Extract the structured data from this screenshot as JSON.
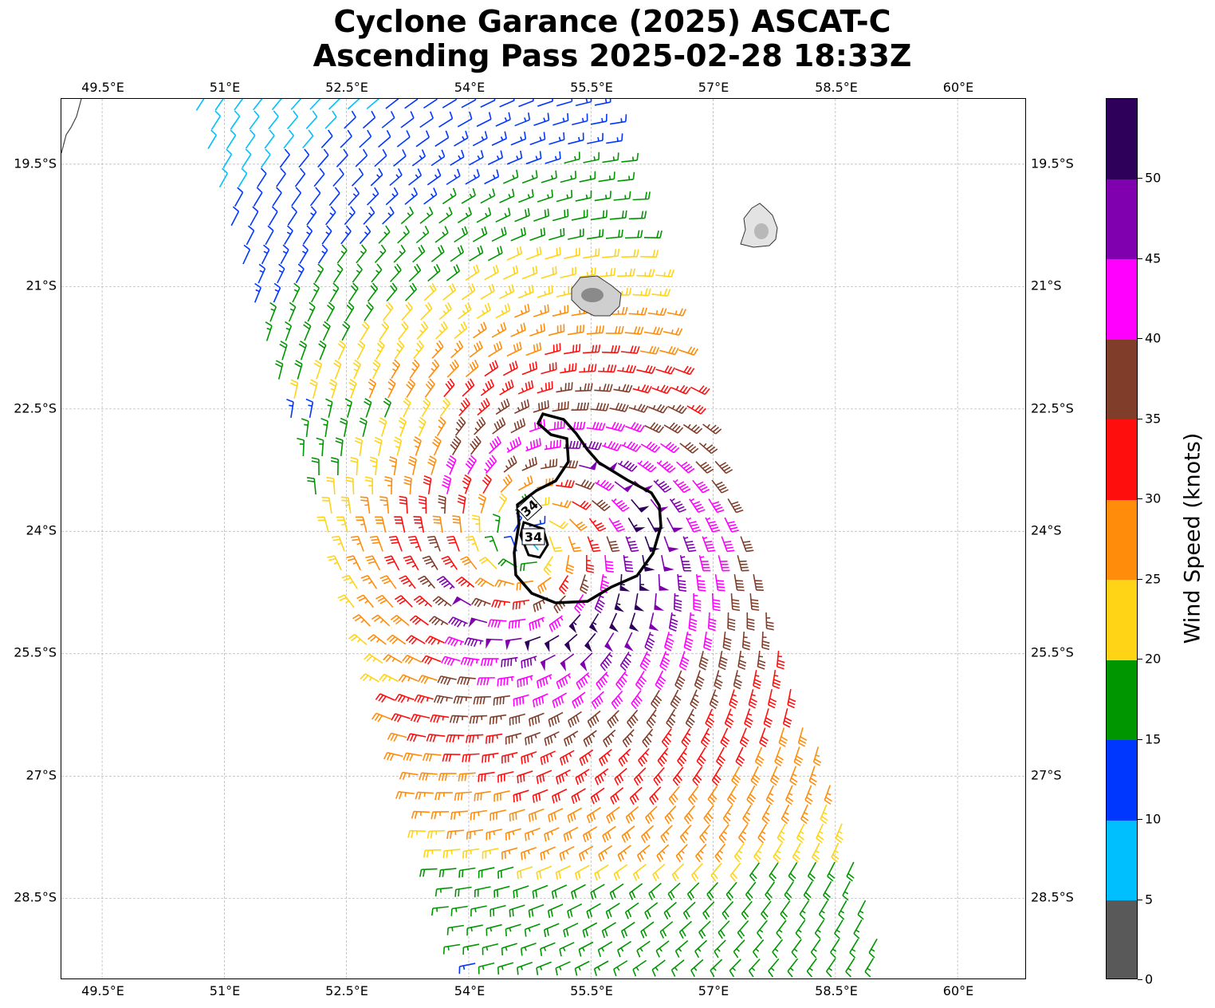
{
  "title": {
    "line1": "Cyclone Garance (2025) ASCAT-C",
    "line2": "Ascending Pass 2025-02-28 18:33Z"
  },
  "lon_labels": [
    "49.5°E",
    "51°E",
    "52.5°E",
    "54°E",
    "55.5°E",
    "57°E",
    "58.5°E",
    "60°E"
  ],
  "lat_labels": [
    "19.5°S",
    "21°S",
    "22.5°S",
    "24°S",
    "25.5°S",
    "27°S",
    "28.5°S"
  ],
  "extent": {
    "lon_min": 49.0,
    "lon_max": 60.85,
    "lat_min": -29.5,
    "lat_max": -18.7
  },
  "gridlines": true,
  "contour": {
    "level_label": "34",
    "units": "knots"
  },
  "islands": [
    "Réunion",
    "Mauritius"
  ],
  "colorbar": {
    "label": "Wind Speed (knots)",
    "ticks": [
      "0",
      "5",
      "10",
      "15",
      "20",
      "25",
      "30",
      "35",
      "40",
      "45",
      "50"
    ],
    "bins": [
      {
        "range": [
          0,
          5
        ],
        "color": "#595959"
      },
      {
        "range": [
          5,
          10
        ],
        "color": "#00bfff"
      },
      {
        "range": [
          10,
          15
        ],
        "color": "#0037ff"
      },
      {
        "range": [
          15,
          20
        ],
        "color": "#009600"
      },
      {
        "range": [
          20,
          25
        ],
        "color": "#ffd316"
      },
      {
        "range": [
          25,
          30
        ],
        "color": "#ff8c0a"
      },
      {
        "range": [
          30,
          35
        ],
        "color": "#ff0e0e"
      },
      {
        "range": [
          35,
          40
        ],
        "color": "#7f3d2a"
      },
      {
        "range": [
          40,
          45
        ],
        "color": "#ff00ff"
      },
      {
        "range": [
          45,
          50
        ],
        "color": "#8000b0"
      },
      {
        "range": [
          50,
          55
        ],
        "color": "#2e005a"
      }
    ]
  },
  "cyclone_center": {
    "lon": 54.8,
    "lat": -24.15
  }
}
